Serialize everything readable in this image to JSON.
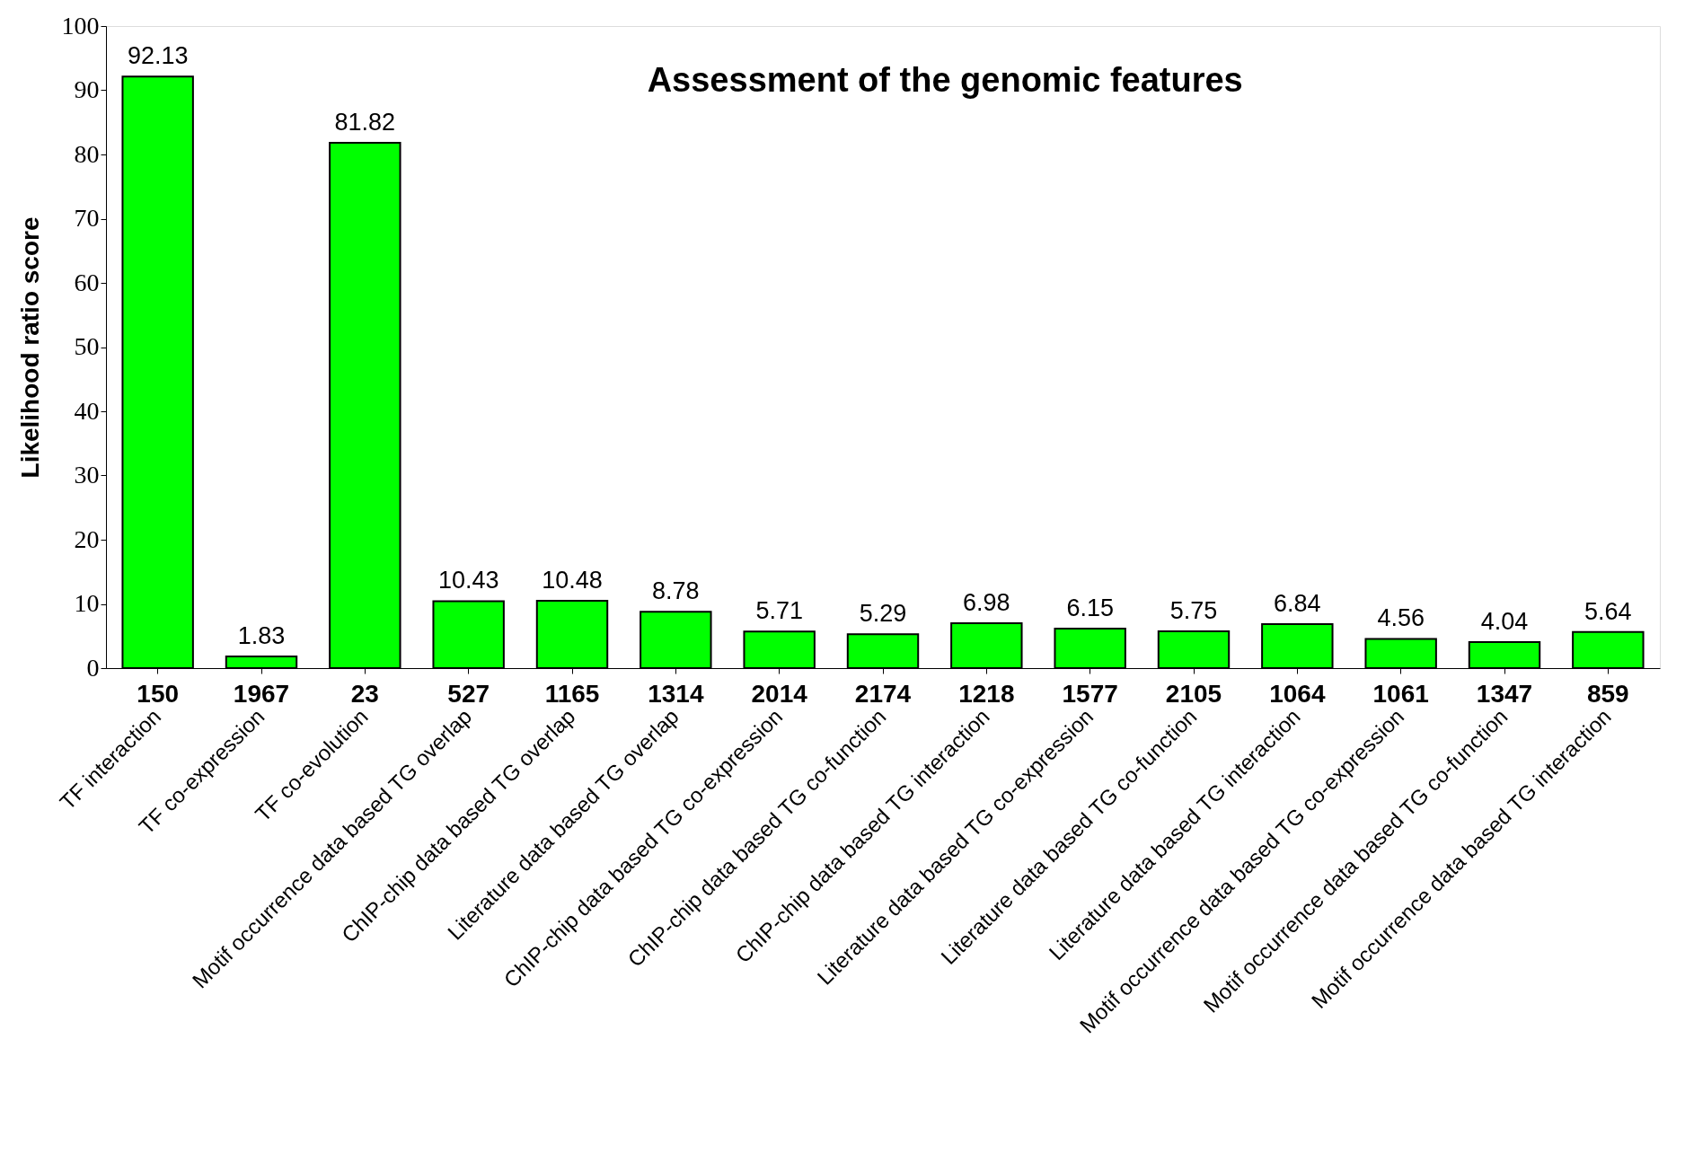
{
  "chart_data": {
    "type": "bar",
    "title": "Assessment of the genomic features",
    "ylabel": "Likelihood ratio score",
    "categories": [
      "TF interaction",
      "TF co-expression",
      "TF co-evolution",
      "Motif occurrence data based TG overlap",
      "ChIP-chip data based TG overlap",
      "Literature data based TG overlap",
      "ChIP-chip data based TG co-expression",
      "ChIP-chip data based TG co-function",
      "ChIP-chip data based TG interaction",
      "Literature data based TG co-expression",
      "Literature data based TG co-function",
      "Literature data based TG interaction",
      "Motif occurrence data based TG co-expression",
      "Motif occurrence data based TG co-function",
      "Motif occurrence data based TG interaction"
    ],
    "values": [
      92.13,
      1.83,
      81.82,
      10.43,
      10.48,
      8.78,
      5.71,
      5.29,
      6.98,
      6.15,
      5.75,
      6.84,
      4.56,
      4.04,
      5.64
    ],
    "color": "#00ff00",
    "data_labels": true,
    "ylim": [
      0,
      100
    ],
    "yticks": [
      0,
      10,
      20,
      30,
      40,
      50,
      60,
      70,
      80,
      90,
      100
    ],
    "grid": false,
    "annotations": [
      "150",
      "1967",
      "23",
      "527",
      "1165",
      "1314",
      "2014",
      "2174",
      "1218",
      "1577",
      "2105",
      "1064",
      "1061",
      "1347",
      "859"
    ]
  }
}
